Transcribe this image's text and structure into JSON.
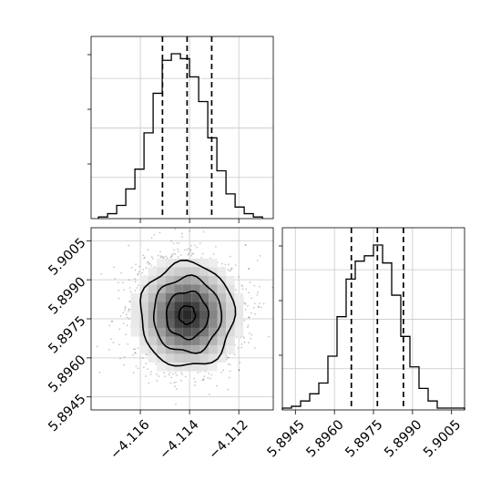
{
  "chart_data": [
    {
      "type": "histogram",
      "panel": "x-marginal",
      "x_ticks": [
        "−4.116",
        "−4.114",
        "−4.112"
      ],
      "x_tick_values": [
        -4.116,
        -4.114,
        -4.112
      ],
      "xlim": [
        -4.118,
        -4.1106
      ],
      "bin_edges_start": -4.1177,
      "bin_width": 0.00037,
      "counts": [
        1,
        3,
        8,
        18,
        30,
        52,
        76,
        96,
        100,
        97,
        86,
        71,
        49,
        29,
        15,
        7,
        3,
        1
      ],
      "quantile_lines": [
        -4.1151,
        -4.1141,
        -4.1131
      ],
      "grid": true
    },
    {
      "type": "histogram",
      "panel": "y-marginal",
      "x_ticks": [
        "5.8945",
        "5.8960",
        "5.8975",
        "5.8990",
        "5.9005"
      ],
      "x_tick_values": [
        5.8945,
        5.896,
        5.8975,
        5.899,
        5.9005
      ],
      "xlim": [
        5.894,
        5.901
      ],
      "bin_edges_start": 5.894,
      "bin_width": 0.00035,
      "counts": [
        1,
        2,
        5,
        9,
        15,
        30,
        52,
        73,
        83,
        86,
        92,
        82,
        64,
        41,
        24,
        12,
        5,
        1,
        1,
        1
      ],
      "quantile_lines": [
        5.89665,
        5.89765,
        5.89865
      ],
      "grid": true
    },
    {
      "type": "scatter",
      "panel": "joint",
      "description_levels": 4,
      "center": [
        -4.1141,
        5.89765
      ],
      "sigma": [
        0.001,
        0.001
      ],
      "xlim": [
        -4.118,
        -4.1106
      ],
      "ylim": [
        5.894,
        5.901
      ],
      "x_ticks": [
        "−4.116",
        "−4.114",
        "−4.112"
      ],
      "y_ticks": [
        "5.8945",
        "5.8960",
        "5.8975",
        "5.8990",
        "5.9005"
      ],
      "y_tick_values": [
        5.8945,
        5.896,
        5.8975,
        5.899,
        5.9005
      ],
      "contour_sigma_multiples": [
        0.35,
        0.9,
        1.45,
        2.0
      ],
      "grid": true
    }
  ]
}
